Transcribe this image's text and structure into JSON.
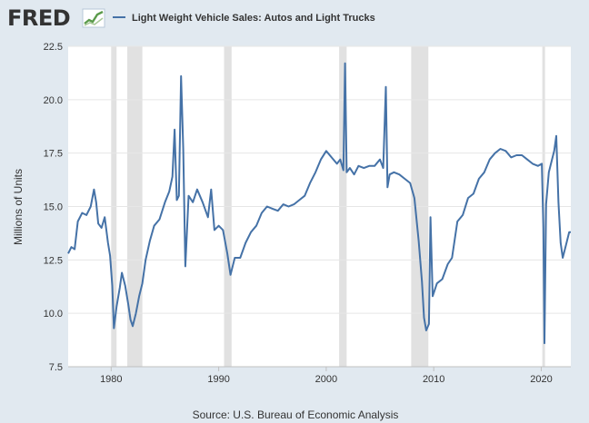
{
  "header": {
    "brand": "FRED",
    "logo_icon": "trend-chart-icon"
  },
  "colors": {
    "background": "#e1e9f0",
    "plot_bg": "#ffffff",
    "series": "#4572a7",
    "recession": "#e1e1e1",
    "text": "#333333"
  },
  "chart_data": {
    "type": "line",
    "title": "",
    "series_name": "Light Weight Vehicle Sales: Autos and Light Trucks",
    "ylabel": "Millions of Units",
    "xlabel": "",
    "source": "Source: U.S. Bureau of Economic Analysis",
    "xlim": [
      1976.0,
      2022.75
    ],
    "ylim": [
      7.5,
      22.5
    ],
    "y_ticks": [
      7.5,
      10.0,
      12.5,
      15.0,
      17.5,
      20.0,
      22.5
    ],
    "y_tick_labels": [
      "7.5",
      "10.0",
      "12.5",
      "15.0",
      "17.5",
      "20.0",
      "22.5"
    ],
    "x_ticks": [
      1980,
      1990,
      2000,
      2010,
      2020
    ],
    "x_tick_labels": [
      "1980",
      "1990",
      "2000",
      "2010",
      "2020"
    ],
    "grid": "horizontal",
    "legend": "top-left",
    "recessions": [
      [
        1980.0,
        1980.5
      ],
      [
        1981.5,
        1982.9
      ],
      [
        1990.5,
        1991.2
      ],
      [
        2001.2,
        2001.9
      ],
      [
        2007.9,
        2009.5
      ],
      [
        2020.1,
        2020.3
      ]
    ],
    "series": [
      {
        "name": "Light Weight Vehicle Sales: Autos and Light Trucks",
        "x": [
          1976.0,
          1976.3,
          1976.6,
          1976.9,
          1977.3,
          1977.7,
          1978.1,
          1978.4,
          1978.6,
          1978.8,
          1979.1,
          1979.4,
          1979.7,
          1979.9,
          1980.1,
          1980.25,
          1980.5,
          1980.8,
          1981.0,
          1981.3,
          1981.6,
          1981.8,
          1982.0,
          1982.3,
          1982.6,
          1982.9,
          1983.2,
          1983.6,
          1984.0,
          1984.5,
          1985.0,
          1985.4,
          1985.7,
          1985.9,
          1986.1,
          1986.3,
          1986.5,
          1986.7,
          1986.9,
          1987.2,
          1987.6,
          1988.0,
          1988.5,
          1989.0,
          1989.3,
          1989.6,
          1990.0,
          1990.4,
          1990.8,
          1991.1,
          1991.5,
          1992.0,
          1992.5,
          1993.0,
          1993.5,
          1994.0,
          1994.5,
          1995.0,
          1995.5,
          1996.0,
          1996.5,
          1997.0,
          1997.5,
          1998.0,
          1998.5,
          1999.0,
          1999.5,
          2000.0,
          2000.5,
          2001.0,
          2001.3,
          2001.6,
          2001.75,
          2001.9,
          2002.2,
          2002.6,
          2003.0,
          2003.5,
          2004.0,
          2004.5,
          2005.0,
          2005.3,
          2005.55,
          2005.7,
          2005.9,
          2006.3,
          2006.8,
          2007.3,
          2007.8,
          2008.2,
          2008.6,
          2008.9,
          2009.1,
          2009.3,
          2009.55,
          2009.7,
          2009.9,
          2010.3,
          2010.8,
          2011.3,
          2011.7,
          2012.2,
          2012.7,
          2013.2,
          2013.7,
          2014.2,
          2014.7,
          2015.2,
          2015.7,
          2016.2,
          2016.7,
          2017.2,
          2017.7,
          2018.2,
          2018.7,
          2019.2,
          2019.7,
          2020.05,
          2020.2,
          2020.3,
          2020.45,
          2020.7,
          2021.0,
          2021.2,
          2021.4,
          2021.6,
          2021.8,
          2022.0,
          2022.3,
          2022.6,
          2022.75
        ],
        "values": [
          12.8,
          13.1,
          13.0,
          14.3,
          14.7,
          14.6,
          15.0,
          15.8,
          15.2,
          14.2,
          14.0,
          14.5,
          13.3,
          12.7,
          11.3,
          9.3,
          10.3,
          11.2,
          11.9,
          11.3,
          10.4,
          9.7,
          9.4,
          10.0,
          10.8,
          11.4,
          12.5,
          13.4,
          14.1,
          14.4,
          15.2,
          15.7,
          16.4,
          18.6,
          15.3,
          15.5,
          21.1,
          17.7,
          12.2,
          15.5,
          15.2,
          15.8,
          15.2,
          14.5,
          15.8,
          13.9,
          14.1,
          13.9,
          12.8,
          11.8,
          12.6,
          12.6,
          13.3,
          13.8,
          14.1,
          14.7,
          15.0,
          14.9,
          14.8,
          15.1,
          15.0,
          15.1,
          15.3,
          15.5,
          16.1,
          16.6,
          17.2,
          17.6,
          17.3,
          17.0,
          17.2,
          16.7,
          21.7,
          16.6,
          16.8,
          16.5,
          16.9,
          16.8,
          16.9,
          16.9,
          17.2,
          16.8,
          20.6,
          15.9,
          16.5,
          16.6,
          16.5,
          16.3,
          16.1,
          15.4,
          13.4,
          11.5,
          9.8,
          9.2,
          9.5,
          14.5,
          10.8,
          11.4,
          11.6,
          12.3,
          12.6,
          14.3,
          14.6,
          15.4,
          15.6,
          16.3,
          16.6,
          17.2,
          17.5,
          17.7,
          17.6,
          17.3,
          17.4,
          17.4,
          17.2,
          17.0,
          16.9,
          17.0,
          14.0,
          8.6,
          15.1,
          16.6,
          17.2,
          17.6,
          18.3,
          15.2,
          13.3,
          12.6,
          13.2,
          13.8,
          13.8
        ]
      }
    ]
  }
}
